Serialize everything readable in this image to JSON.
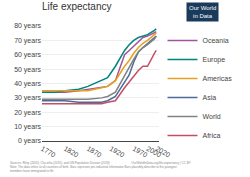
{
  "chart_data": {
    "type": "line",
    "title": "Life expectancy",
    "annotations": [
      "Our World\nin Data",
      "Sources: Riley (2005); Clio-infra (2015); and UN Population Division (2019)                          OurWorldInData.org/life-expectancy | CC BY\nNote: The data refers to all countries of birth. Bars represent pre-industrial information Bars plausibly describe to the youngest\nmembers have immigrated to life."
    ],
    "x": [
      1770,
      1800,
      1820,
      1850,
      1870,
      1900,
      1913,
      1930,
      1950,
      1960,
      1970,
      1980,
      1990,
      2000,
      2015,
      2019
    ],
    "series": [
      {
        "name": "Oceania",
        "color": "#a2559c",
        "values": [
          34,
          34,
          34,
          35,
          36,
          37,
          38,
          42,
          60,
          63,
          66,
          69,
          72,
          73,
          75,
          76
        ]
      },
      {
        "name": "Europe",
        "color": "#00847e",
        "values": [
          34,
          34,
          35,
          36,
          38,
          42,
          44,
          52,
          63,
          67,
          70,
          72,
          73,
          74,
          77,
          78
        ]
      },
      {
        "name": "Americas",
        "color": "#e6a020",
        "values": [
          35,
          35,
          35,
          35,
          35,
          37,
          38,
          42,
          52,
          56,
          61,
          65,
          68,
          70,
          74,
          75
        ]
      },
      {
        "name": "Asia",
        "color": "#4c6a9c",
        "values": [
          28,
          28,
          28,
          27,
          27,
          27,
          28,
          31,
          41,
          46,
          55,
          62,
          65,
          68,
          72,
          73
        ]
      },
      {
        "name": "World",
        "color": "#818282",
        "values": [
          29,
          29,
          29,
          29,
          29,
          30,
          31,
          34,
          46,
          51,
          57,
          62,
          65,
          67,
          71,
          73
        ]
      },
      {
        "name": "Africa",
        "color": "#c15065",
        "values": [
          26,
          26,
          26,
          26,
          26,
          26,
          27,
          28,
          37,
          41,
          45,
          49,
          52,
          52,
          61,
          63
        ]
      }
    ],
    "xlim": [
      1770,
      2025
    ],
    "xticks": [
      1770,
      1820,
      1870,
      1920,
      1970,
      2000,
      2020
    ],
    "ylim": [
      0,
      80
    ],
    "yticks": [
      {
        "value": 0,
        "label": "0 years"
      },
      {
        "value": 10,
        "label": "10 years"
      },
      {
        "value": 20,
        "label": "20 years"
      },
      {
        "value": 30,
        "label": "30 years"
      },
      {
        "value": 40,
        "label": "40 years"
      },
      {
        "value": 50,
        "label": "50 years"
      },
      {
        "value": 60,
        "label": "60 years"
      },
      {
        "value": 70,
        "label": "70 years"
      },
      {
        "value": 80,
        "label": "80 years"
      }
    ],
    "grid": "y",
    "legend": "right"
  }
}
